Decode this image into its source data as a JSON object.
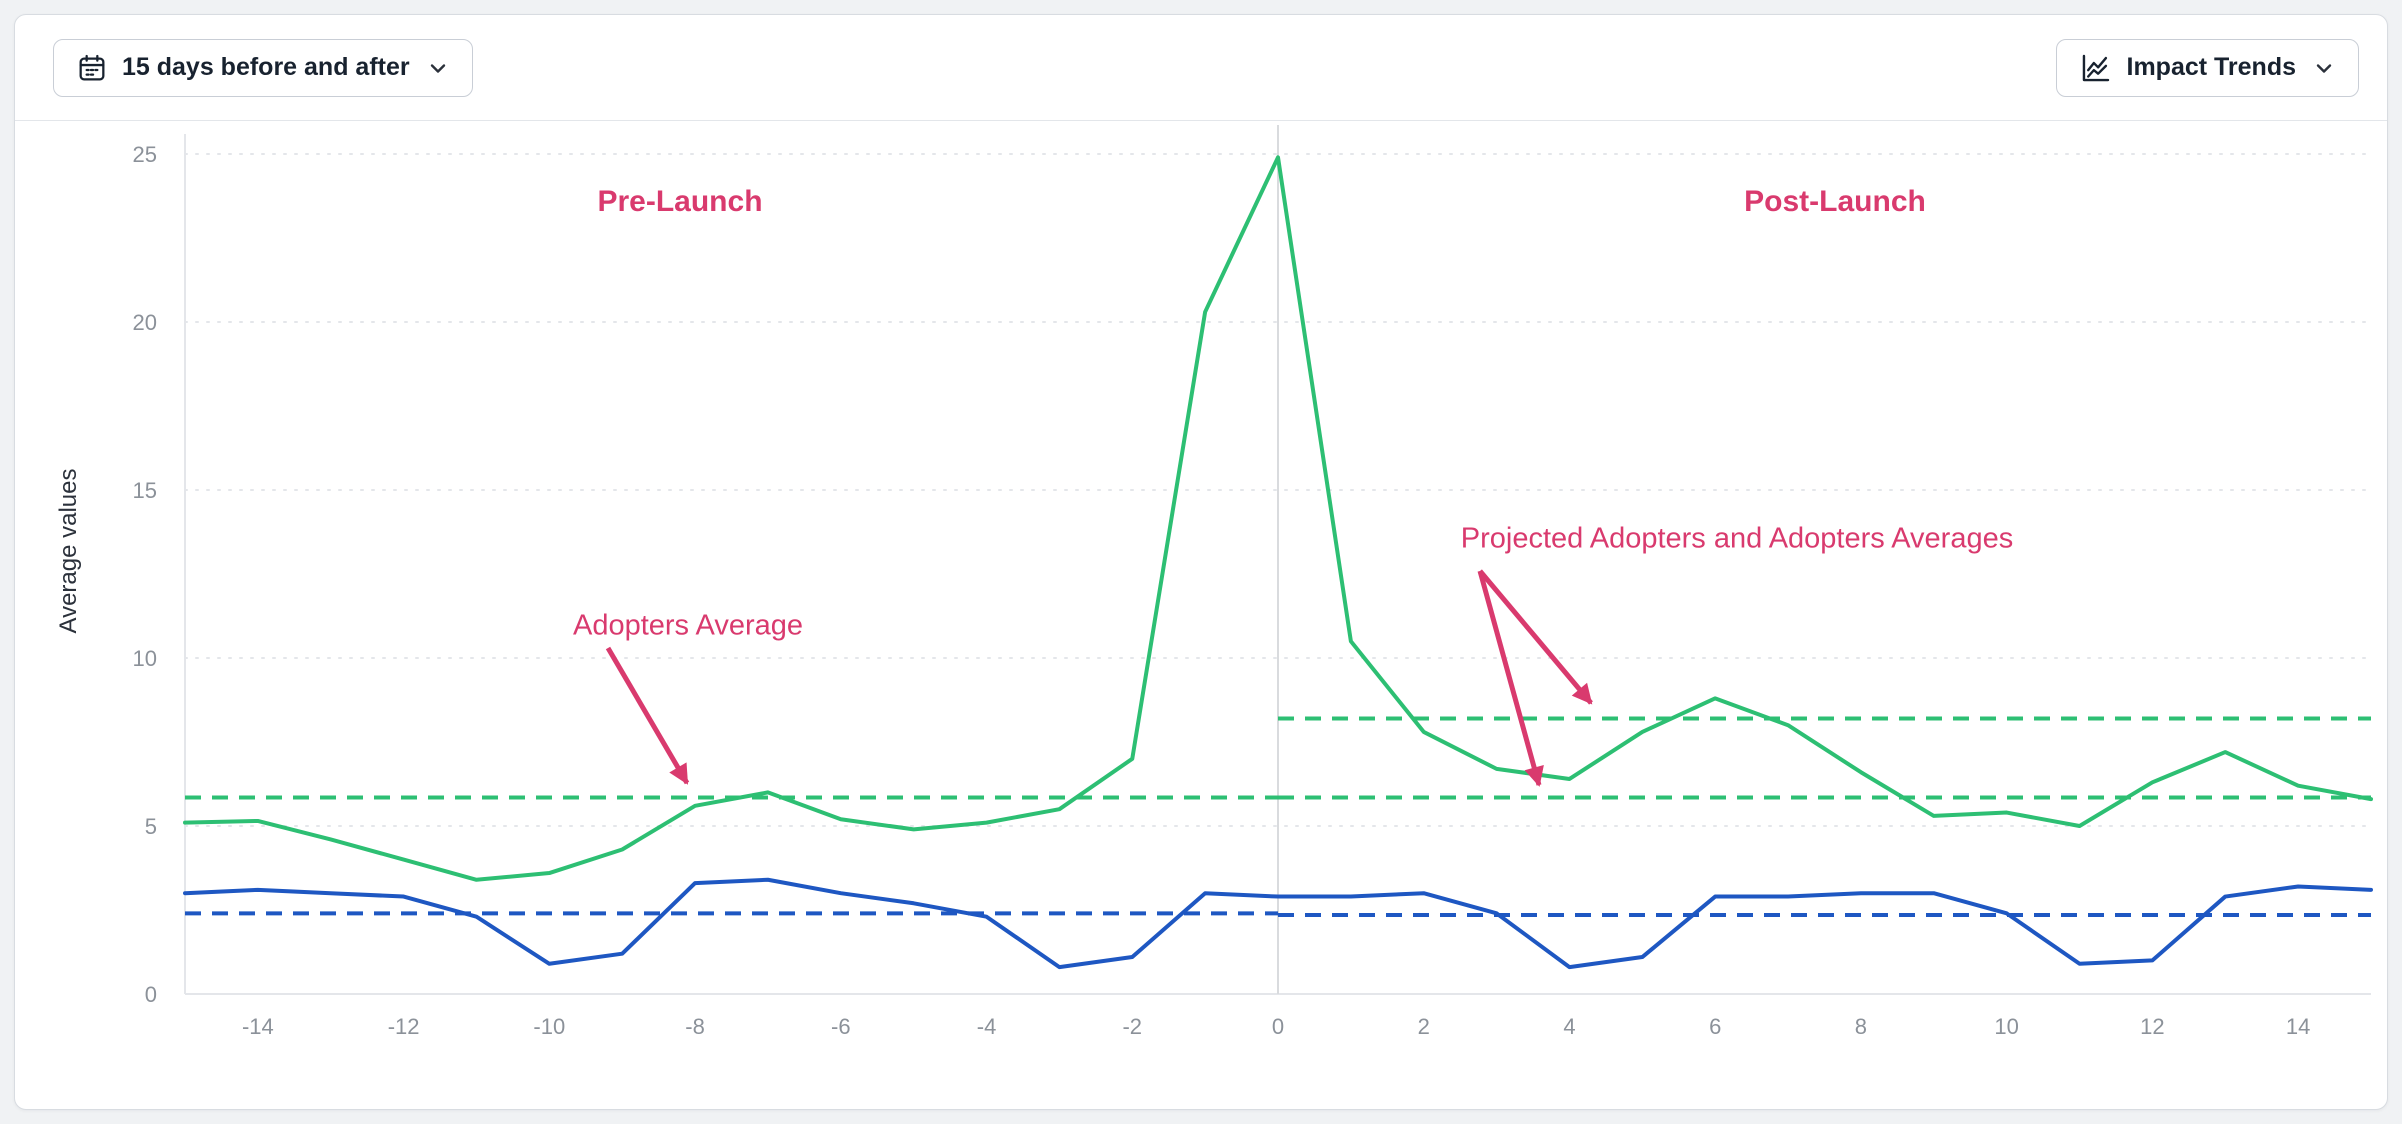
{
  "toolbar": {
    "date_range": {
      "label": "15 days before and after",
      "icon": "calendar-icon",
      "chevron": "chevron-down-icon"
    },
    "trends": {
      "label": "Impact Trends",
      "icon": "line-chart-icon",
      "chevron": "chevron-down-icon"
    }
  },
  "chart_data": {
    "type": "line",
    "title": "",
    "xlabel": "",
    "ylabel": "Average values",
    "xlim": [
      -15,
      15
    ],
    "ylim": [
      0,
      25
    ],
    "x_ticks": [
      -14,
      -12,
      -10,
      -8,
      -6,
      -4,
      -2,
      0,
      2,
      4,
      6,
      8,
      10,
      12,
      14
    ],
    "y_ticks": [
      0,
      5,
      10,
      15,
      20,
      25
    ],
    "grid": "horizontal-dotted",
    "event_line_x": 0,
    "accent_color": "#d93a6e",
    "x": [
      -15,
      -14,
      -13,
      -12,
      -11,
      -10,
      -9,
      -8,
      -7,
      -6,
      -5,
      -4,
      -3,
      -2,
      -1,
      0,
      1,
      2,
      3,
      4,
      5,
      6,
      7,
      8,
      9,
      10,
      11,
      12,
      13,
      14,
      15
    ],
    "series": [
      {
        "name": "adopters",
        "color": "#2dbf73",
        "values": [
          5.1,
          5.15,
          4.6,
          4.0,
          3.4,
          3.6,
          4.3,
          5.6,
          6.0,
          5.2,
          4.9,
          5.1,
          5.5,
          7.0,
          20.3,
          24.9,
          10.5,
          7.8,
          6.7,
          6.4,
          7.8,
          8.8,
          8.0,
          6.6,
          5.3,
          5.4,
          5.0,
          6.3,
          7.2,
          6.2,
          5.8
        ]
      },
      {
        "name": "comparison-group",
        "color": "#1e57c2",
        "values": [
          3.0,
          3.1,
          3.0,
          2.9,
          2.3,
          0.9,
          1.2,
          3.3,
          3.4,
          3.0,
          2.7,
          2.3,
          0.8,
          1.1,
          3.0,
          2.9,
          2.9,
          3.0,
          2.4,
          0.8,
          1.1,
          2.9,
          2.9,
          3.0,
          3.0,
          2.4,
          0.9,
          1.0,
          2.9,
          3.2,
          3.1
        ]
      }
    ],
    "reference_lines": [
      {
        "name": "adopters-average-pre-launch",
        "color": "#2dbf73",
        "value": 5.85,
        "x_start": -15,
        "x_end": 0
      },
      {
        "name": "adopters-average-post-launch",
        "color": "#2dbf73",
        "value": 8.2,
        "x_start": 0,
        "x_end": 15
      },
      {
        "name": "projected-adopters-average",
        "color": "#2dbf73",
        "value": 5.85,
        "x_start": 0,
        "x_end": 15
      },
      {
        "name": "comparison-average-pre-launch",
        "color": "#1e57c2",
        "value": 2.4,
        "x_start": -15,
        "x_end": 0
      },
      {
        "name": "comparison-average-post-launch",
        "color": "#1e57c2",
        "value": 2.35,
        "x_start": 0,
        "x_end": 15
      }
    ],
    "annotations": {
      "pre_launch": "Pre-Launch",
      "post_launch": "Post-Launch",
      "adopters_average": "Adopters Average",
      "projected_averages": "Projected Adopters and Adopters Averages"
    }
  }
}
